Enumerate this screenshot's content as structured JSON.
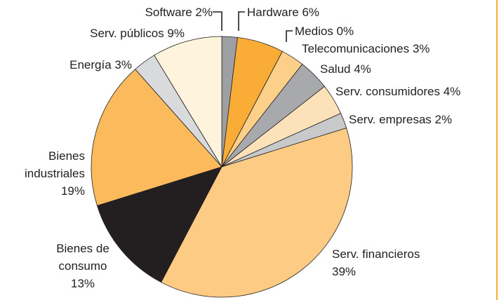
{
  "chart_data": {
    "type": "pie",
    "categories": [
      "Software",
      "Hardware",
      "Medios",
      "Telecomunicaciones",
      "Salud",
      "Serv. consumidores",
      "Serv. empresas",
      "Serv. financieros",
      "Bienes de consumo",
      "Bienes industriales",
      "Energía",
      "Serv. públicos"
    ],
    "values": [
      2,
      6,
      0,
      3,
      4,
      4,
      2,
      39,
      13,
      19,
      3,
      9
    ],
    "value_labels": [
      "2%",
      "6%",
      "0%",
      "3%",
      "4%",
      "4%",
      "2%",
      "39%",
      "13%",
      "19%",
      "3%",
      "9%"
    ],
    "colors": [
      "#9d9fa2",
      "#f9ad36",
      "#fbc46e",
      "#fdd08a",
      "#a7a9ac",
      "#fde1b8",
      "#c8c9cb",
      "#fdcb84",
      "#231f20",
      "#fbbb5c",
      "#d9dadb",
      "#fef3dd"
    ]
  }
}
